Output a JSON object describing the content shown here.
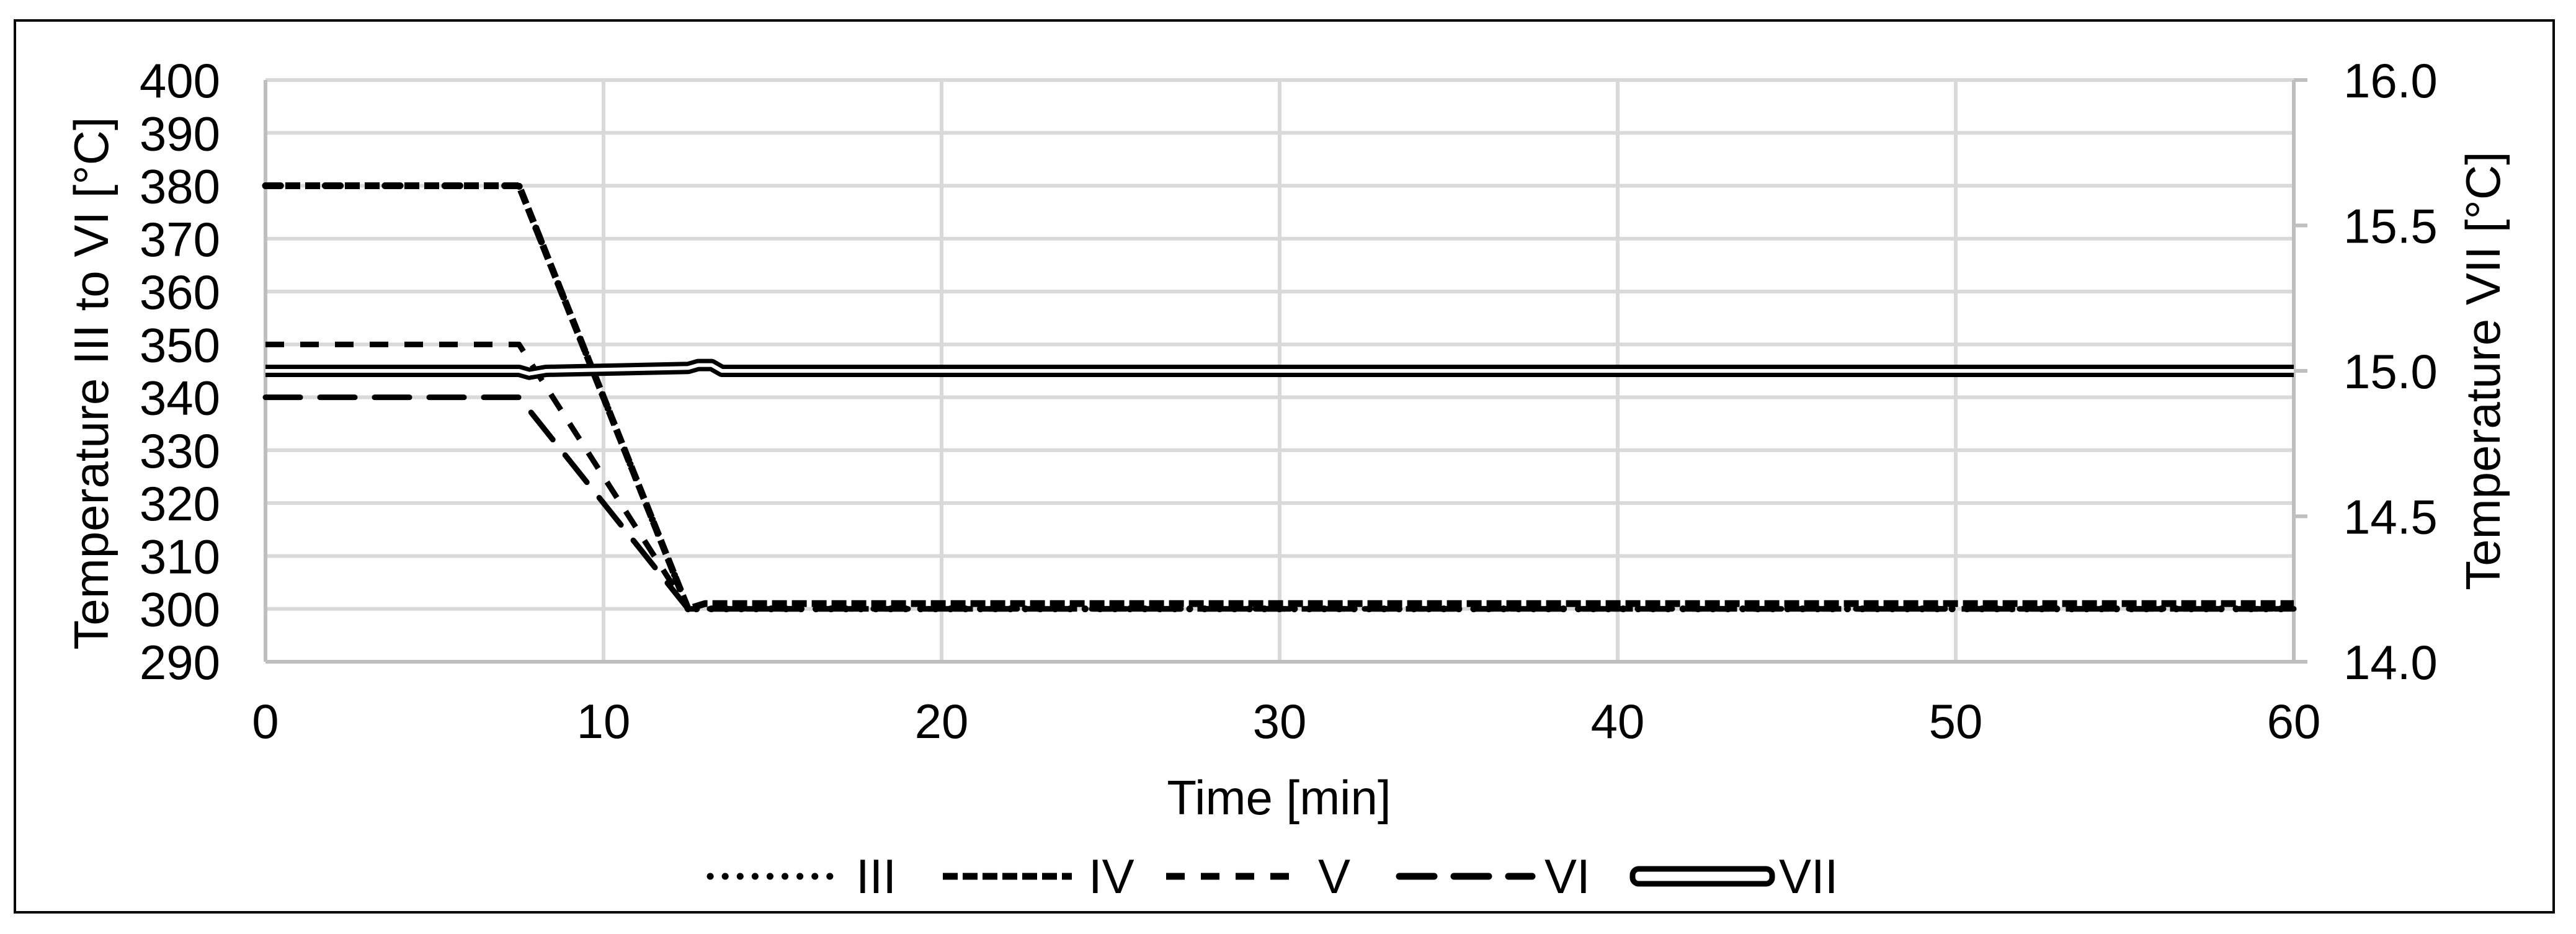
{
  "chart_data": {
    "type": "line",
    "title": "",
    "xlabel": "Time [min]",
    "ylabel": "Temperature III to VI [°C]",
    "y2label": "Temperature VII [°C]",
    "xlim": [
      0,
      60
    ],
    "ylim": [
      290,
      400
    ],
    "y2lim": [
      14.0,
      16.0
    ],
    "x_ticks": [
      "0",
      "10",
      "20",
      "30",
      "40",
      "50",
      "60"
    ],
    "y_ticks": [
      "290",
      "300",
      "310",
      "320",
      "330",
      "340",
      "350",
      "360",
      "370",
      "380",
      "390",
      "400"
    ],
    "y2_ticks": [
      "14.0",
      "14.5",
      "15.0",
      "15.5",
      "16.0"
    ],
    "grid": true,
    "legend_position": "bottom",
    "series": [
      {
        "name": "III",
        "axis": "left",
        "style": "round-dot",
        "x": [
          0,
          7.5,
          12.5,
          60
        ],
        "values": [
          380,
          380,
          300,
          300
        ]
      },
      {
        "name": "IV",
        "axis": "left",
        "style": "square-dot",
        "x": [
          0,
          7.5,
          12.5,
          13,
          60
        ],
        "values": [
          380,
          380,
          300,
          301,
          301
        ]
      },
      {
        "name": "V",
        "axis": "left",
        "style": "dash",
        "x": [
          0,
          7.5,
          12.5,
          60
        ],
        "values": [
          350,
          350,
          300,
          300
        ]
      },
      {
        "name": "VI",
        "axis": "left",
        "style": "long-dash",
        "x": [
          0,
          7.5,
          12.5,
          60
        ],
        "values": [
          340,
          340,
          300,
          300
        ]
      },
      {
        "name": "VII",
        "axis": "right",
        "style": "double-line",
        "x": [
          0,
          7.5,
          7.8,
          8.3,
          12.5,
          12.8,
          13.2,
          13.5,
          60
        ],
        "values": [
          15.0,
          15.0,
          14.99,
          15.0,
          15.01,
          15.02,
          15.02,
          15.0,
          15.0
        ]
      }
    ]
  },
  "legend": {
    "items": [
      {
        "label": "III"
      },
      {
        "label": "IV"
      },
      {
        "label": "V"
      },
      {
        "label": "VI"
      },
      {
        "label": "VII"
      }
    ]
  },
  "colors": {
    "series": "#000000",
    "gridline": "#d9d9d9",
    "axis": "#bfbfbf",
    "frame": "#000000"
  }
}
